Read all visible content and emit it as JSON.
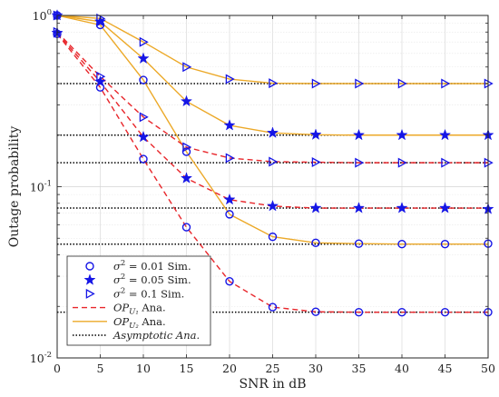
{
  "chart_data": {
    "type": "line",
    "title": "",
    "xlabel": "SNR in dB",
    "ylabel": "Outage probability",
    "xlim": [
      0,
      50
    ],
    "ylim": [
      0.01,
      1
    ],
    "yscale": "log",
    "grid": true,
    "legend_position": "bottom-left",
    "x_ticks": [
      0,
      5,
      10,
      15,
      20,
      25,
      30,
      35,
      40,
      45,
      50
    ],
    "y_ticks": [
      {
        "value": 1,
        "base": "10",
        "exp": "0"
      },
      {
        "value": 0.1,
        "base": "10",
        "exp": "-1"
      },
      {
        "value": 0.01,
        "base": "10",
        "exp": "-2"
      }
    ],
    "x": [
      0,
      5,
      10,
      15,
      20,
      25,
      30,
      35,
      40,
      45,
      50
    ],
    "colors": {
      "markers": "#1515e6",
      "ana_u1": "#e8262b",
      "ana_u2": "#eca928",
      "asymptotic": "#000000"
    },
    "groups": [
      {
        "sigma2": "0.01",
        "u1_sim": [
          0.78,
          0.38,
          0.145,
          0.058,
          0.028,
          0.0198,
          0.0186,
          0.0185,
          0.0185,
          0.0185,
          0.0185
        ],
        "u1_ana": [
          0.78,
          0.38,
          0.145,
          0.058,
          0.028,
          0.0198,
          0.0186,
          0.0185,
          0.0185,
          0.0185,
          0.0185
        ],
        "u2_sim": [
          1.0,
          0.88,
          0.42,
          0.16,
          0.069,
          0.051,
          0.047,
          0.0465,
          0.0462,
          0.0462,
          0.0465
        ],
        "u2_ana": [
          1.0,
          0.88,
          0.42,
          0.16,
          0.069,
          0.051,
          0.047,
          0.0465,
          0.0462,
          0.0462,
          0.0462
        ],
        "asym_u1": 0.0185,
        "asym_u2": 0.0462
      },
      {
        "sigma2": "0.05",
        "u1_sim": [
          0.79,
          0.41,
          0.195,
          0.112,
          0.084,
          0.077,
          0.075,
          0.075,
          0.075,
          0.075,
          0.074
        ],
        "u1_ana": [
          0.79,
          0.41,
          0.195,
          0.112,
          0.084,
          0.077,
          0.075,
          0.075,
          0.075,
          0.075,
          0.075
        ],
        "u2_sim": [
          1.0,
          0.92,
          0.56,
          0.315,
          0.228,
          0.206,
          0.201,
          0.2,
          0.2,
          0.2,
          0.2
        ],
        "u2_ana": [
          1.0,
          0.92,
          0.56,
          0.315,
          0.228,
          0.206,
          0.201,
          0.2,
          0.2,
          0.2,
          0.2
        ],
        "asym_u1": 0.075,
        "asym_u2": 0.2
      },
      {
        "sigma2": "0.1",
        "u1_sim": [
          0.8,
          0.44,
          0.255,
          0.17,
          0.147,
          0.14,
          0.139,
          0.138,
          0.138,
          0.138,
          0.138
        ],
        "u1_ana": [
          0.8,
          0.44,
          0.255,
          0.17,
          0.147,
          0.14,
          0.139,
          0.138,
          0.138,
          0.138,
          0.138
        ],
        "u2_sim": [
          1.0,
          0.96,
          0.7,
          0.5,
          0.425,
          0.402,
          0.4,
          0.4,
          0.4,
          0.4,
          0.4
        ],
        "u2_ana": [
          1.0,
          0.96,
          0.7,
          0.5,
          0.425,
          0.402,
          0.4,
          0.4,
          0.4,
          0.4,
          0.4
        ],
        "asym_u1": 0.138,
        "asym_u2": 0.4
      }
    ],
    "legend": [
      {
        "kind": "circle",
        "label_pre": "σ",
        "label_sup": "2",
        "label_post": " = 0.01 Sim."
      },
      {
        "kind": "star",
        "label_pre": "σ",
        "label_sup": "2",
        "label_post": " = 0.05 Sim."
      },
      {
        "kind": "triangle",
        "label_pre": "σ",
        "label_sup": "2",
        "label_post": " = 0.1 Sim."
      },
      {
        "kind": "dashed-red",
        "label_pre": "OP",
        "label_sub": "U₁",
        "label_post": " Ana."
      },
      {
        "kind": "solid-orange",
        "label_pre": "OP",
        "label_sub": "U₂",
        "label_post": " Ana."
      },
      {
        "kind": "dotted-black",
        "label_pre": "Asymptotic Ana.",
        "label_post": ""
      }
    ]
  }
}
